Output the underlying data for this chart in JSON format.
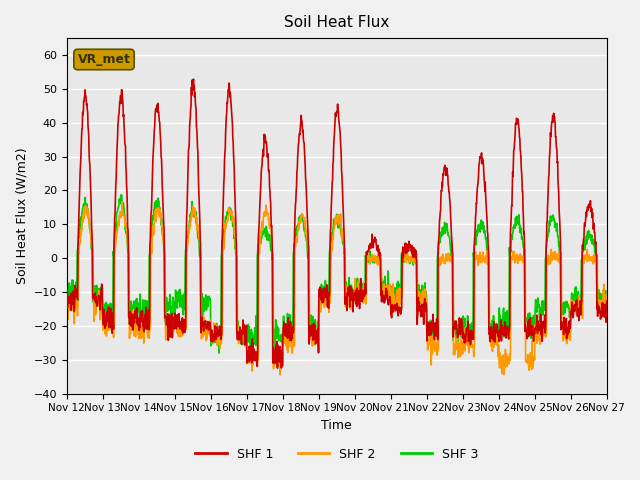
{
  "title": "Soil Heat Flux",
  "ylabel": "Soil Heat Flux (W/m2)",
  "xlabel": "Time",
  "xlim_days": [
    0,
    15
  ],
  "ylim": [
    -40,
    65
  ],
  "yticks": [
    -40,
    -30,
    -20,
    -10,
    0,
    10,
    20,
    30,
    40,
    50,
    60
  ],
  "xtick_labels": [
    "Nov 12",
    "Nov 13",
    "Nov 14",
    "Nov 15",
    "Nov 16",
    "Nov 17",
    "Nov 18",
    "Nov 19",
    "Nov 20",
    "Nov 21",
    "Nov 22",
    "Nov 23",
    "Nov 24",
    "Nov 25",
    "Nov 26",
    "Nov 27"
  ],
  "color_shf1": "#cc0000",
  "color_shf2": "#ff9900",
  "color_shf3": "#00cc00",
  "legend_label1": "SHF 1",
  "legend_label2": "SHF 2",
  "legend_label3": "SHF 3",
  "bg_color": "#e8e8e8",
  "grid_color": "#ffffff",
  "annotation_text": "VR_met",
  "annotation_color": "#cc9900",
  "linewidth": 1.2,
  "n_points": 1500
}
